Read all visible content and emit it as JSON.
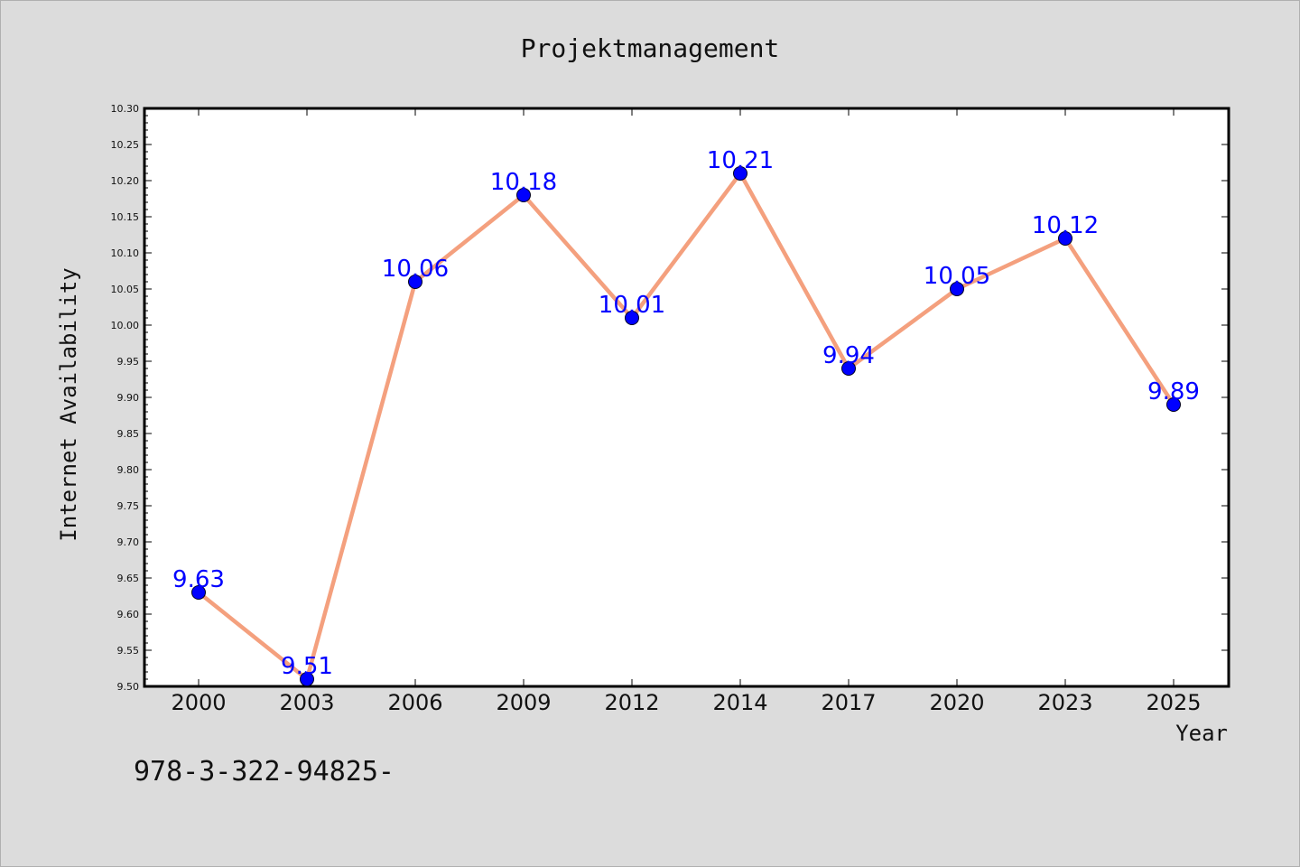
{
  "chart_data": {
    "type": "line",
    "title": "Projektmanagement",
    "xlabel": "Year",
    "ylabel": "Internet Availability",
    "categories": [
      "2000",
      "2003",
      "2006",
      "2009",
      "2012",
      "2014",
      "2017",
      "2020",
      "2023",
      "2025"
    ],
    "series": [
      {
        "values": [
          9.63,
          9.51,
          10.06,
          10.18,
          10.01,
          10.21,
          9.94,
          10.05,
          10.12,
          9.89
        ]
      }
    ],
    "data_labels": [
      "9.63",
      "9.51",
      "10.06",
      "10.18",
      "10.01",
      "10.21",
      "9.94",
      "10.05",
      "10.12",
      "9.89"
    ],
    "ylim": [
      9.5,
      10.3
    ],
    "yticks": [
      "9.50",
      "9.55",
      "9.60",
      "9.65",
      "9.70",
      "9.75",
      "9.80",
      "9.85",
      "9.90",
      "9.95",
      "10.00",
      "10.05",
      "10.10",
      "10.15",
      "10.20",
      "10.25",
      "10.30"
    ],
    "grid": false,
    "legend": "none",
    "colors": {
      "line": "#f4a07e",
      "marker": "#0000ff",
      "data_label": "#0000ff",
      "background": "#dcdcdc",
      "plot_area": "#ffffff"
    }
  },
  "footer_text": "978-3-322-94825-"
}
